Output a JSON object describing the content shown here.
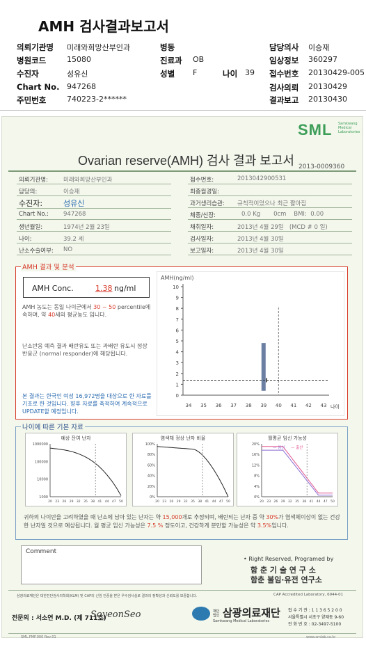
{
  "header": {
    "title": "AMH 검사결과보고서",
    "left": [
      {
        "label": "의뢰기관명",
        "value": "미래와희망산부인과"
      },
      {
        "label": "병원코드",
        "value": "15080"
      },
      {
        "label": "수진자",
        "value": "성유신"
      },
      {
        "label": "Chart No.",
        "value": "947268"
      },
      {
        "label": "주민번호",
        "value": "740223-2******"
      }
    ],
    "mid": [
      {
        "label": "병동",
        "value": ""
      },
      {
        "label": "진료과",
        "value": "OB"
      },
      {
        "label": "성별",
        "value": "F"
      }
    ],
    "age": {
      "label": "나이",
      "value": "39"
    },
    "right": [
      {
        "label": "담당의사",
        "value": "이승재"
      },
      {
        "label": "임상정보",
        "value": "360297"
      },
      {
        "label": "접수번호",
        "value": "20130429-005"
      },
      {
        "label": "검사의뢰",
        "value": "20130429"
      },
      {
        "label": "결과보고",
        "value": "20130430"
      }
    ]
  },
  "report": {
    "logo": "SML",
    "logo_sub": "Samkwang Medical Laboratories",
    "title": "Ovarian reserve(AMH) 검사 결과 보고서",
    "number": "2013-0009360",
    "left_fields": [
      {
        "label": "의뢰기관명:",
        "value": "미래와희망산부인과"
      },
      {
        "label": "담당의:",
        "value": "이승재"
      },
      {
        "label": "수진자:",
        "value": "성유신"
      },
      {
        "label": "Chart No.:",
        "value": "947268"
      },
      {
        "label": "생년월일:",
        "value": "1974년 2월 23일"
      },
      {
        "label": "나이:",
        "value": "39.2 세"
      },
      {
        "label": "난소수술여부:",
        "value": "NO"
      }
    ],
    "right_fields": [
      {
        "label": "접수번호:",
        "value": "2013042900531"
      },
      {
        "label": "최종월경일:",
        "value": ""
      },
      {
        "label": "과거생리습관:",
        "value": "규칙적이었으나 최근 짧아짐"
      },
      {
        "label": "체중/신장:",
        "value": "0.0 Kg       0cm    BMI:  0.00"
      },
      {
        "label": "채취일자:",
        "value": "2013년 4월 29일   (MCD # 0 일)"
      },
      {
        "label": "검사일자:",
        "value": "2013년 4월 30일"
      },
      {
        "label": "보고일자:",
        "value": "2013년 4월 30일"
      }
    ]
  },
  "amh": {
    "section_title": "AMH 결과 및 분석",
    "conc_label": "AMH Conc.",
    "conc_value": "1.38",
    "conc_unit": "ng/ml",
    "para1_a": "AMH 농도는 동일 나이군에서 ",
    "para1_range": "30 ~ 50",
    "para1_b": "percentile에 속하며, 약 ",
    "para1_age": "40",
    "para1_c": "세의 평균농도 입니다.",
    "para2": "난소반응 예측 결과 배란유도 또는 과배란 유도시 정상반응군 (normal responder)에 해당됩니다.",
    "para3": "본 결과는 한국인 여성 16,972명을 대상으로 한 자료를 기초로 한 것입니다. 향후 자료를 축적하여 계속적으로 UPDATE할 예정입니다."
  },
  "chart_data": [
    {
      "type": "range",
      "title": "",
      "ylabel": "AMH(ng/ml)",
      "xlabel": "나이",
      "x_ticks": [
        "34",
        "35",
        "36",
        "37",
        "38",
        "39",
        "40",
        "41",
        "42",
        "43"
      ],
      "y_ticks": [
        "0",
        "1",
        "2",
        "3",
        "4",
        "5",
        "6",
        "7",
        "8",
        "9",
        "10"
      ],
      "ylim": [
        0,
        10
      ],
      "patient_age": 39.2,
      "patient_value": 1.38,
      "range_bar": {
        "x": 39,
        "low": 0.4,
        "high": 4.8
      },
      "equivalent_age": 40
    },
    {
      "type": "line",
      "title": "예상 잔여 난자",
      "y_ticks": [
        "1000000",
        "100000",
        "10000",
        "1000"
      ],
      "x_ticks": [
        "20",
        "23",
        "26",
        "29",
        "32",
        "35",
        "38",
        "41",
        "44",
        "47",
        "50"
      ]
    },
    {
      "type": "line",
      "title": "염색체 정상 난자 비율",
      "y_ticks": [
        "100%",
        "80%",
        "60%",
        "40%",
        "20%",
        "0%"
      ],
      "x_ticks": [
        "20",
        "23",
        "26",
        "29",
        "32",
        "35",
        "38",
        "41",
        "44",
        "47",
        "50"
      ]
    },
    {
      "type": "line",
      "title": "월평균 임신 가능성",
      "y_ticks": [
        "20%",
        "16%",
        "12%",
        "8%",
        "4%",
        "0%"
      ],
      "x_ticks": [
        "20",
        "23",
        "26",
        "29",
        "32",
        "35",
        "38",
        "41",
        "44",
        "47",
        "50"
      ],
      "legend": [
        "임신",
        "출산"
      ]
    }
  ],
  "age_section": {
    "title": "나이에 따른 기본 자료",
    "text_a": "귀하의 나이만을 고려하였을 때 난소에 남아 있는 난자는 약 ",
    "eggs": "15,000",
    "text_b": "개로 추정되며, 배란되는 난자 중 약 ",
    "pct1": "30%",
    "text_c": "가 염색체이상이 없는 건강한 난자일 것으로 예상됩니다. 월 평균 임신 가능성은 ",
    "pct2": "7.5 %",
    "text_d": " 정도이고, 건강하게 분만할 가능성은 약 ",
    "pct3": "3.5%",
    "text_e": "입니다."
  },
  "comment_label": "Comment",
  "rights": "• Right Reserved, Programed by",
  "org1": "함 춘 기 술 연 구 소",
  "org2": "함춘 불임·유전 연구소",
  "footer_note": "삼광의료재단은 대한진단검사의학회(KLM) 및 CAP의 신임 인증을 받은 우수검사실로 결과의 정확성과 신뢰도를 보증합니다.",
  "cap": "CAP  Accredited  Laboratory,  6944-01",
  "doctor": "전문의 : 서소연 M.D. (제 711호)",
  "signature": "SoyeonSeo",
  "foundation": "삼광의료재단",
  "foundation_pre": "재단법인",
  "foundation_en": "Samkwang Medical Laboratories",
  "addr1": "접 수 기 관 : 1 1 3 6 5 2 0 0",
  "addr2": "서울특별시 서초구 양재동 9-60",
  "addr3": "전 화 번 호 : 02-3497-5100",
  "url": "www.smlab.co.kr",
  "footer_code": "SML.FMF.000 Rev.01"
}
